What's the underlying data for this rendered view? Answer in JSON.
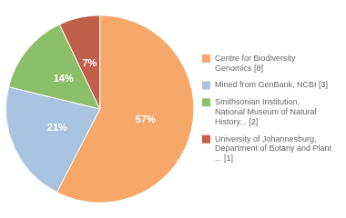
{
  "chart_data": {
    "type": "pie",
    "categories": [
      "Centre for Biodiversity\nGenomics [8]",
      "Mined from GenBank, NCBI [3]",
      "Smithsonian Institution,\nNational Museum of Natural\nHistory... [2]",
      "University of Johannesburg,\nDepartment of Botany and Plant\n... [1]"
    ],
    "values": [
      57,
      21,
      14,
      7
    ],
    "value_labels": [
      "57%",
      "21%",
      "14%",
      "7%"
    ],
    "colors": [
      "#F5A86A",
      "#A8C4E0",
      "#8CBF6A",
      "#C0604A"
    ],
    "data_labels": true,
    "legend": "right"
  }
}
